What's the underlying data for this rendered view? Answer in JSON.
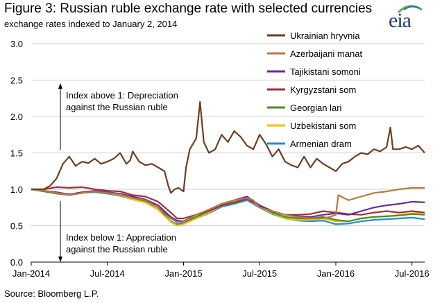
{
  "title": "Figure 3: Russian ruble exchange rate with selected currencies",
  "subtitle": "exchange rates indexed to January 2, 2014",
  "source": "Source: Bloomberg L.P.",
  "logo_text": "eia",
  "chart_data": {
    "type": "line",
    "ylim": [
      0,
      3
    ],
    "yticks": [
      "0.0",
      "0.5",
      "1.0",
      "1.5",
      "2.0",
      "2.5",
      "3.0"
    ],
    "xticks": [
      "Jan-2014",
      "Jul-2014",
      "Jan-2015",
      "Jul-2015",
      "Jan-2016",
      "Jul-2016"
    ],
    "xlim_months": [
      0,
      31
    ],
    "grid": true,
    "legend_position": "top-right",
    "annotations": [
      {
        "line1": "Index above 1: Depreciation",
        "line2": "against the Russian ruble"
      },
      {
        "line1": "Index below 1: Appreciation",
        "line2": "against the Russian ruble"
      }
    ],
    "series": [
      {
        "name": "Ukrainian hryvnia",
        "color": "#6b3e1e",
        "x": [
          0,
          1,
          1.5,
          2,
          2.5,
          3,
          3.5,
          4,
          4.5,
          5,
          5.5,
          6,
          6.5,
          7,
          7.5,
          7.8,
          8,
          8.5,
          9,
          9.5,
          10,
          10.5,
          10.8,
          11,
          11.3,
          11.6,
          12,
          12.2,
          12.5,
          13,
          13.3,
          13.6,
          14,
          14.5,
          15,
          15.5,
          16,
          16.5,
          17,
          17.5,
          18,
          18.5,
          19,
          19.5,
          20,
          20.5,
          21,
          21.5,
          22,
          22.5,
          23,
          23.5,
          24,
          24.5,
          25,
          25.5,
          26,
          26.5,
          27,
          27.5,
          28,
          28.3,
          28.5,
          29,
          29.5,
          30,
          30.5,
          31
        ],
        "y": [
          1.0,
          1.0,
          1.05,
          1.15,
          1.35,
          1.45,
          1.32,
          1.38,
          1.36,
          1.42,
          1.35,
          1.38,
          1.42,
          1.5,
          1.35,
          1.4,
          1.52,
          1.38,
          1.33,
          1.35,
          1.3,
          1.25,
          1.05,
          0.95,
          1.0,
          1.02,
          0.97,
          1.3,
          1.55,
          1.7,
          2.2,
          1.65,
          1.5,
          1.55,
          1.75,
          1.65,
          1.8,
          1.72,
          1.6,
          1.55,
          1.75,
          1.62,
          1.45,
          1.55,
          1.38,
          1.33,
          1.3,
          1.45,
          1.3,
          1.42,
          1.35,
          1.3,
          1.25,
          1.35,
          1.38,
          1.45,
          1.5,
          1.48,
          1.55,
          1.52,
          1.58,
          1.85,
          1.55,
          1.55,
          1.58,
          1.55,
          1.6,
          1.5
        ]
      },
      {
        "name": "Azerbaijani manat",
        "color": "#b87a3a",
        "x": [
          0,
          1,
          2,
          3,
          4,
          5,
          6,
          7,
          8,
          9,
          10,
          10.5,
          11,
          11.5,
          12,
          12.5,
          13,
          14,
          15,
          16,
          17,
          17.5,
          18,
          19,
          20,
          21,
          22,
          23,
          23.5,
          24,
          24.2,
          25,
          26,
          27,
          28,
          29,
          30,
          31
        ],
        "y": [
          1.0,
          0.98,
          0.95,
          0.92,
          0.95,
          0.97,
          0.95,
          0.93,
          0.88,
          0.85,
          0.75,
          0.65,
          0.6,
          0.55,
          0.55,
          0.6,
          0.65,
          0.72,
          0.8,
          0.85,
          0.88,
          0.85,
          0.75,
          0.7,
          0.65,
          0.62,
          0.6,
          0.6,
          0.62,
          0.65,
          0.92,
          0.85,
          0.9,
          0.95,
          0.97,
          1.0,
          1.02,
          1.02
        ]
      },
      {
        "name": "Tajikistani somoni",
        "color": "#6a2a9a",
        "x": [
          0,
          1,
          2,
          3,
          4,
          5,
          6,
          7,
          8,
          9,
          10,
          11,
          11.5,
          12,
          13,
          14,
          15,
          16,
          17,
          18,
          19,
          20,
          21,
          22,
          23,
          24,
          25,
          26,
          27,
          28,
          29,
          30,
          31
        ],
        "y": [
          1.0,
          0.98,
          0.96,
          0.93,
          0.96,
          0.98,
          0.96,
          0.94,
          0.9,
          0.86,
          0.78,
          0.62,
          0.57,
          0.56,
          0.65,
          0.72,
          0.8,
          0.85,
          0.9,
          0.78,
          0.7,
          0.65,
          0.63,
          0.62,
          0.65,
          0.67,
          0.65,
          0.7,
          0.75,
          0.78,
          0.8,
          0.83,
          0.82
        ]
      },
      {
        "name": "Kyrgyzstani som",
        "color": "#a12e3a",
        "x": [
          0,
          1,
          2,
          3,
          4,
          5,
          6,
          7,
          8,
          9,
          10,
          11,
          11.5,
          12,
          13,
          14,
          15,
          16,
          17,
          18,
          19,
          20,
          21,
          22,
          23,
          24,
          25,
          26,
          27,
          28,
          29,
          30,
          31
        ],
        "y": [
          1.0,
          1.0,
          1.03,
          1.02,
          1.03,
          1.0,
          0.98,
          0.97,
          0.92,
          0.9,
          0.83,
          0.68,
          0.6,
          0.6,
          0.65,
          0.7,
          0.78,
          0.82,
          0.87,
          0.77,
          0.7,
          0.65,
          0.65,
          0.66,
          0.7,
          0.68,
          0.66,
          0.65,
          0.68,
          0.7,
          0.68,
          0.7,
          0.68
        ]
      },
      {
        "name": "Georgian lari",
        "color": "#4a8a2a",
        "x": [
          0,
          1,
          2,
          3,
          4,
          5,
          6,
          7,
          8,
          9,
          10,
          11,
          11.5,
          12,
          13,
          14,
          15,
          16,
          17,
          18,
          19,
          20,
          21,
          22,
          23,
          24,
          25,
          26,
          27,
          28,
          29,
          30,
          31
        ],
        "y": [
          1.0,
          0.97,
          0.94,
          0.92,
          0.95,
          0.97,
          0.95,
          0.93,
          0.88,
          0.84,
          0.75,
          0.6,
          0.55,
          0.55,
          0.62,
          0.7,
          0.8,
          0.85,
          0.9,
          0.78,
          0.68,
          0.62,
          0.6,
          0.6,
          0.62,
          0.58,
          0.56,
          0.6,
          0.62,
          0.63,
          0.64,
          0.66,
          0.65
        ]
      },
      {
        "name": "Uzbekistani som",
        "color": "#f2c200",
        "x": [
          0,
          1,
          2,
          3,
          4,
          5,
          6,
          7,
          8,
          9,
          10,
          11,
          11.5,
          12,
          13,
          14,
          15,
          16,
          17,
          18,
          19,
          20,
          21,
          22,
          23,
          24,
          25,
          26,
          27,
          28,
          29,
          30,
          31
        ],
        "y": [
          1.0,
          0.97,
          0.95,
          0.92,
          0.95,
          0.97,
          0.95,
          0.92,
          0.86,
          0.82,
          0.72,
          0.55,
          0.5,
          0.52,
          0.6,
          0.68,
          0.78,
          0.83,
          0.87,
          0.76,
          0.67,
          0.6,
          0.58,
          0.58,
          0.6,
          0.56,
          0.56,
          0.6,
          0.62,
          0.63,
          0.65,
          0.67,
          0.68
        ]
      },
      {
        "name": "Armenian dram",
        "color": "#1f8fd0",
        "x": [
          0,
          1,
          2,
          3,
          4,
          5,
          6,
          7,
          8,
          9,
          10,
          11,
          11.5,
          12,
          13,
          14,
          15,
          16,
          17,
          18,
          19,
          20,
          21,
          22,
          23,
          24,
          25,
          26,
          27,
          28,
          29,
          30,
          31
        ],
        "y": [
          1.0,
          0.97,
          0.95,
          0.93,
          0.95,
          0.96,
          0.94,
          0.91,
          0.86,
          0.82,
          0.72,
          0.56,
          0.52,
          0.53,
          0.6,
          0.67,
          0.76,
          0.8,
          0.85,
          0.75,
          0.66,
          0.6,
          0.57,
          0.56,
          0.57,
          0.52,
          0.53,
          0.56,
          0.58,
          0.59,
          0.6,
          0.61,
          0.59
        ]
      }
    ]
  }
}
